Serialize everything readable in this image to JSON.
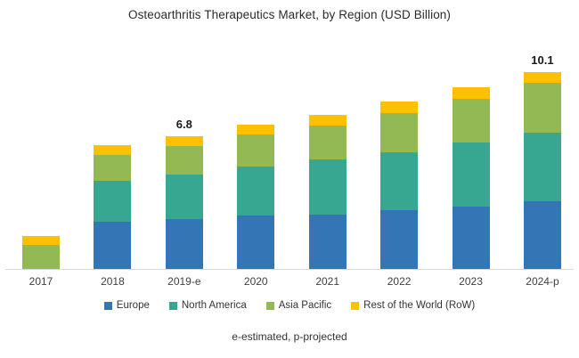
{
  "title": "Osteoarthritis Therapeutics Market, by Region (USD Billion)",
  "footnote": "e-estimated, p-projected",
  "colors": {
    "europe": "#3375B5",
    "north_america": "#38A792",
    "asia_pacific": "#93B954",
    "rest_of_world": "#FFC000",
    "axis_line": "#D9D9D9",
    "total_label_text": "#1A1A1A"
  },
  "chart_data": {
    "type": "bar",
    "stacked": true,
    "title": "Osteoarthritis Therapeutics Market, by Region (USD Billion)",
    "units": "USD Billion",
    "categories": [
      "2017",
      "2018",
      "2019-e",
      "2020",
      "2021",
      "2022",
      "2023",
      "2024-p"
    ],
    "series": [
      {
        "name": "Europe",
        "color": "#3375B5",
        "values": [
          0,
          2.4,
          2.55,
          2.75,
          2.8,
          3.0,
          3.2,
          3.45
        ]
      },
      {
        "name": "North America",
        "color": "#38A792",
        "values": [
          0,
          2.1,
          2.3,
          2.5,
          2.8,
          3.0,
          3.3,
          3.55
        ]
      },
      {
        "name": "Asia Pacific",
        "color": "#93B954",
        "values": [
          1.25,
          1.35,
          1.45,
          1.65,
          1.75,
          2.0,
          2.2,
          2.55
        ]
      },
      {
        "name": "Rest of the World (RoW)",
        "color": "#FFC000",
        "values": [
          0.45,
          0.5,
          0.5,
          0.5,
          0.55,
          0.6,
          0.6,
          0.55
        ]
      }
    ],
    "totals": [
      1.7,
      6.35,
      6.8,
      7.4,
      7.9,
      8.6,
      9.3,
      10.1
    ],
    "total_labels": [
      "",
      "",
      "6.8",
      "",
      "",
      "",
      "",
      "10.1"
    ],
    "ylim": [
      0,
      10.5
    ],
    "grid": false,
    "legend_position": "bottom"
  }
}
